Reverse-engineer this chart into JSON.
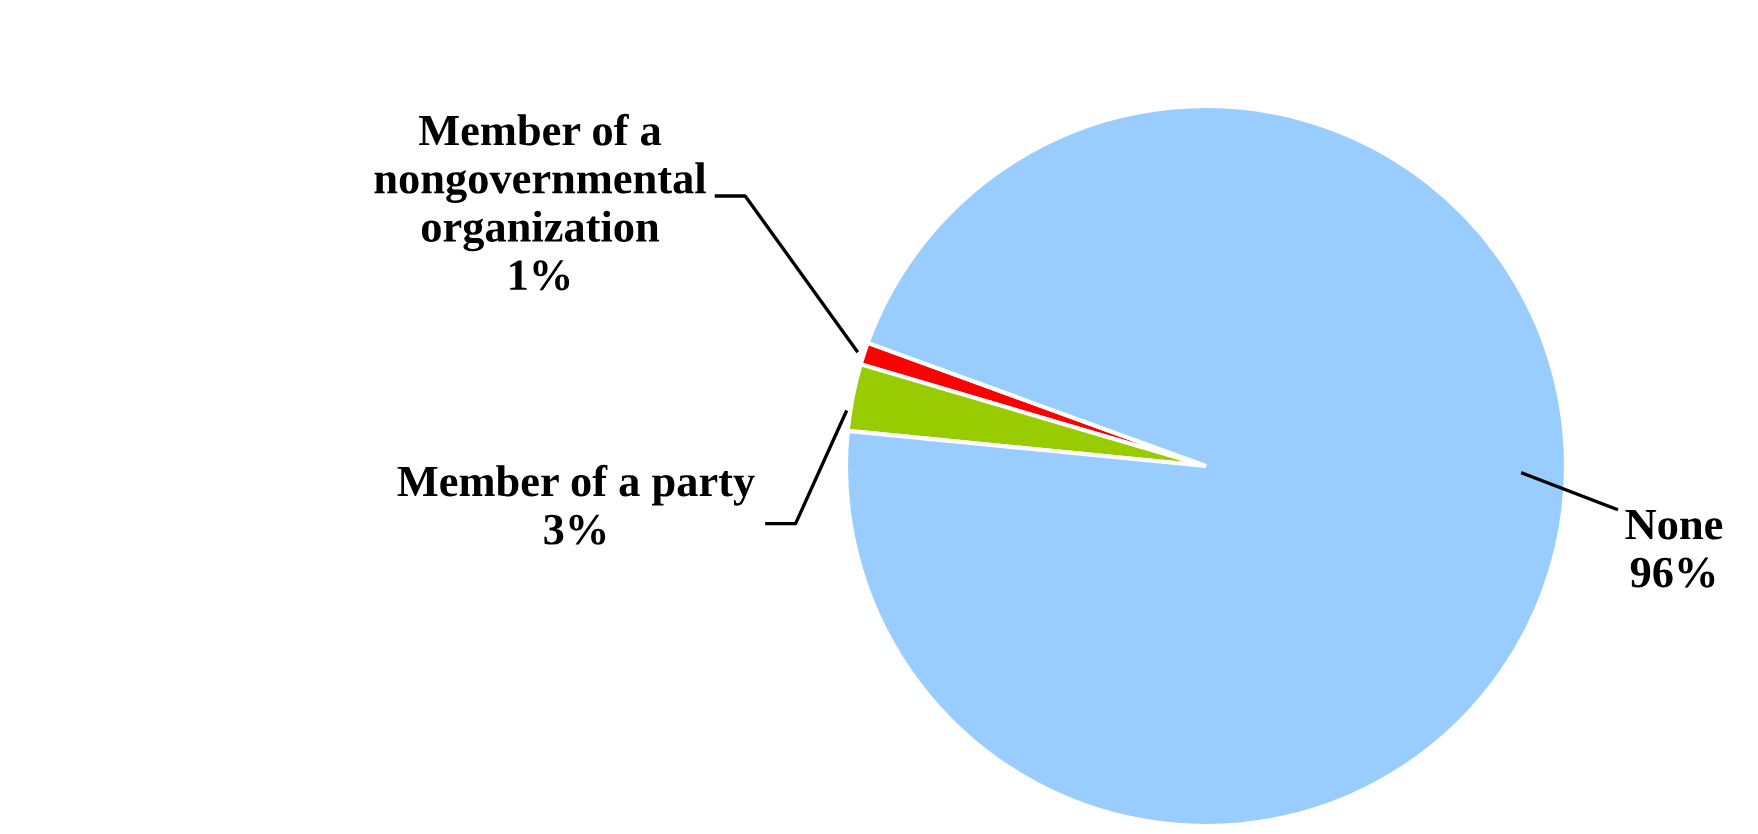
{
  "chart_data": {
    "type": "pie",
    "categories": [
      "Member of a nongovernmental organization",
      "Member of a party",
      "None"
    ],
    "values": [
      1,
      3,
      96
    ],
    "colors": [
      "#ff0000",
      "#99cc00",
      "#99ccff"
    ],
    "value_labels": [
      "1%",
      "3%",
      "96%"
    ]
  }
}
